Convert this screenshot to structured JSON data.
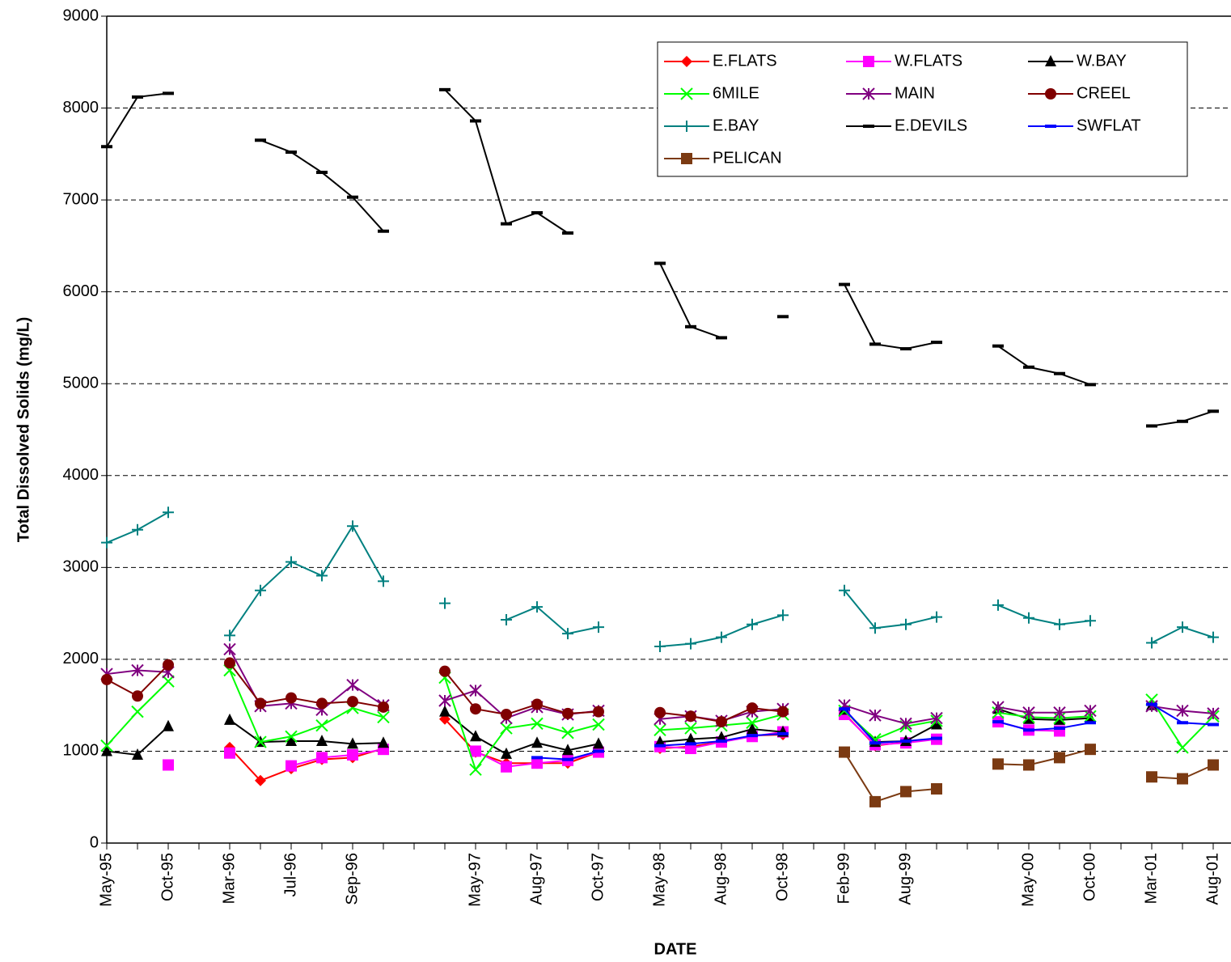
{
  "chart_data": {
    "type": "line",
    "x_label": "DATE",
    "y_label": "Total Dissolved Solids (mg/L)",
    "ylim": [
      0,
      9000
    ],
    "yticks": [
      0,
      1000,
      2000,
      3000,
      4000,
      5000,
      6000,
      7000,
      8000,
      9000
    ],
    "grid": true,
    "legend": "top-right",
    "categories": [
      "May-95",
      null,
      "Oct-95",
      null,
      "Mar-96",
      null,
      "Jul-96",
      null,
      "Sep-96",
      null,
      null,
      null,
      "May-97",
      null,
      "Aug-97",
      null,
      "Oct-97",
      null,
      "May-98",
      null,
      "Aug-98",
      null,
      "Oct-98",
      null,
      "Feb-99",
      null,
      "Aug-99",
      null,
      null,
      null,
      "May-00",
      null,
      "Oct-00",
      null,
      "Mar-01",
      null,
      "Aug-01"
    ],
    "series": [
      {
        "name": "E.FLATS",
        "color": "#ff0000",
        "marker": "diamond",
        "values": [
          null,
          null,
          null,
          null,
          1040,
          680,
          810,
          910,
          930,
          1030,
          null,
          1350,
          990,
          870,
          870,
          870,
          990,
          null,
          1030,
          1050,
          1100,
          1170,
          1180,
          null,
          1410,
          1060,
          1100,
          1130,
          null,
          null,
          null,
          null,
          null,
          null,
          null,
          null,
          null
        ]
      },
      {
        "name": "W.FLATS",
        "color": "#ff00ff",
        "marker": "square",
        "values": [
          null,
          null,
          850,
          null,
          980,
          null,
          840,
          930,
          960,
          1020,
          null,
          null,
          1000,
          830,
          870,
          900,
          990,
          null,
          1050,
          1030,
          1100,
          1160,
          1210,
          null,
          1400,
          1070,
          1090,
          1130,
          null,
          1320,
          1230,
          1220,
          null,
          null,
          null,
          null,
          null
        ]
      },
      {
        "name": "W.BAY",
        "color": "#000000",
        "marker": "triangle",
        "values": [
          1000,
          960,
          1270,
          null,
          1340,
          1100,
          1110,
          1110,
          1080,
          1090,
          null,
          1430,
          1160,
          970,
          1090,
          1010,
          1080,
          null,
          1100,
          1130,
          1150,
          1240,
          1210,
          null,
          1450,
          1100,
          1110,
          1290,
          null,
          1460,
          1350,
          1340,
          1360,
          null,
          1500,
          null,
          null
        ]
      },
      {
        "name": "6MILE",
        "color": "#00ff00",
        "marker": "x",
        "values": [
          1060,
          1430,
          1760,
          null,
          1880,
          1100,
          1160,
          1280,
          1470,
          1370,
          null,
          1800,
          800,
          1250,
          1300,
          1200,
          1290,
          null,
          1230,
          1250,
          1280,
          1310,
          1400,
          null,
          1440,
          1130,
          1270,
          1330,
          null,
          1420,
          1370,
          1360,
          1380,
          null,
          1560,
          1040,
          1380
        ]
      },
      {
        "name": "MAIN",
        "color": "#800080",
        "marker": "star",
        "values": [
          1840,
          1880,
          1860,
          null,
          2110,
          1490,
          1520,
          1450,
          1720,
          1500,
          null,
          1550,
          1660,
          1360,
          1480,
          1400,
          1440,
          null,
          1350,
          1380,
          1330,
          1430,
          1460,
          null,
          1500,
          1390,
          1300,
          1360,
          null,
          1480,
          1420,
          1420,
          1440,
          null,
          1490,
          1440,
          1410
        ]
      },
      {
        "name": "CREEL",
        "color": "#800000",
        "marker": "circle",
        "values": [
          1780,
          1600,
          1940,
          null,
          1960,
          1520,
          1580,
          1520,
          1540,
          1480,
          null,
          1870,
          1460,
          1400,
          1510,
          1410,
          1430,
          null,
          1420,
          1380,
          1320,
          1470,
          1430,
          null,
          null,
          null,
          null,
          null,
          null,
          null,
          null,
          null,
          null,
          null,
          null,
          null,
          null
        ]
      },
      {
        "name": "E.BAY",
        "color": "#008080",
        "marker": "plus",
        "values": [
          3270,
          3410,
          3600,
          null,
          2260,
          2750,
          3060,
          2910,
          3450,
          2850,
          null,
          2610,
          null,
          2430,
          2570,
          2280,
          2350,
          null,
          2140,
          2170,
          2240,
          2380,
          2480,
          null,
          2750,
          2340,
          2380,
          2460,
          null,
          2590,
          2450,
          2380,
          2420,
          null,
          2180,
          2350,
          2240
        ]
      },
      {
        "name": "E.DEVILS",
        "color": "#000000",
        "marker": "dash",
        "values": [
          7580,
          8120,
          8160,
          null,
          null,
          7650,
          7520,
          7300,
          7030,
          6660,
          null,
          8200,
          7860,
          6740,
          6860,
          6640,
          null,
          null,
          6310,
          5620,
          5500,
          null,
          5730,
          null,
          6080,
          5430,
          5380,
          5450,
          null,
          5410,
          5180,
          5110,
          4990,
          null,
          4540,
          4590,
          4700
        ]
      },
      {
        "name": "SWFLAT",
        "color": "#0000ff",
        "marker": "dash",
        "values": [
          null,
          null,
          null,
          null,
          null,
          null,
          null,
          null,
          null,
          null,
          null,
          null,
          null,
          null,
          930,
          910,
          1000,
          null,
          1060,
          1080,
          1110,
          1170,
          1190,
          null,
          1460,
          1090,
          1110,
          1140,
          null,
          1320,
          1230,
          1250,
          1310,
          null,
          1510,
          1310,
          1290
        ]
      },
      {
        "name": "PELICAN",
        "color": "#7b3a12",
        "marker": "square",
        "values": [
          null,
          null,
          null,
          null,
          null,
          null,
          null,
          null,
          null,
          null,
          null,
          null,
          null,
          null,
          null,
          null,
          null,
          null,
          null,
          null,
          null,
          null,
          null,
          null,
          990,
          450,
          560,
          590,
          null,
          860,
          850,
          930,
          1020,
          null,
          720,
          700,
          850
        ]
      }
    ]
  }
}
